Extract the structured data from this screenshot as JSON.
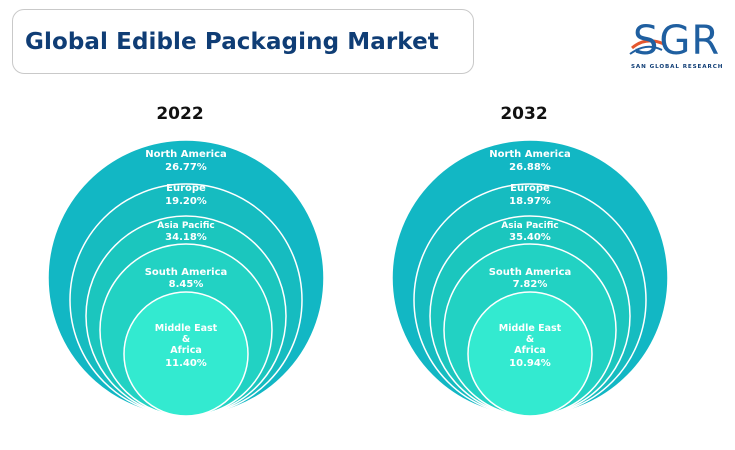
{
  "header": {
    "title": "Global Edible Packaging Market"
  },
  "logo": {
    "letters": "SGR",
    "subtitle": "SAN GLOBAL RESEARCH",
    "colors": {
      "primary": "#1f5fa0",
      "accent": "#e4572e"
    }
  },
  "colors": {
    "rings": [
      "#12b7c4",
      "#16bcc0",
      "#1bc6be",
      "#22d2c3",
      "#33ead0"
    ],
    "ring_stroke": "#ffffff",
    "title": "#0f3d75"
  },
  "chart_data": [
    {
      "type": "nested-circles",
      "title": "2022",
      "categories": [
        "North America",
        "Europe",
        "Asia Pacific",
        "South America",
        "Middle East & Africa"
      ],
      "values": [
        26.77,
        19.2,
        34.18,
        8.45,
        11.4
      ],
      "value_labels": [
        "26.77%",
        "19.20%",
        "34.18%",
        "8.45%",
        "11.40%"
      ]
    },
    {
      "type": "nested-circles",
      "title": "2032",
      "categories": [
        "North America",
        "Europe",
        "Asia Pacific",
        "South America",
        "Middle East & Africa"
      ],
      "values": [
        26.88,
        18.97,
        35.4,
        7.82,
        10.94
      ],
      "value_labels": [
        "26.88%",
        "18.97%",
        "35.40%",
        "7.82%",
        "10.94%"
      ]
    }
  ]
}
